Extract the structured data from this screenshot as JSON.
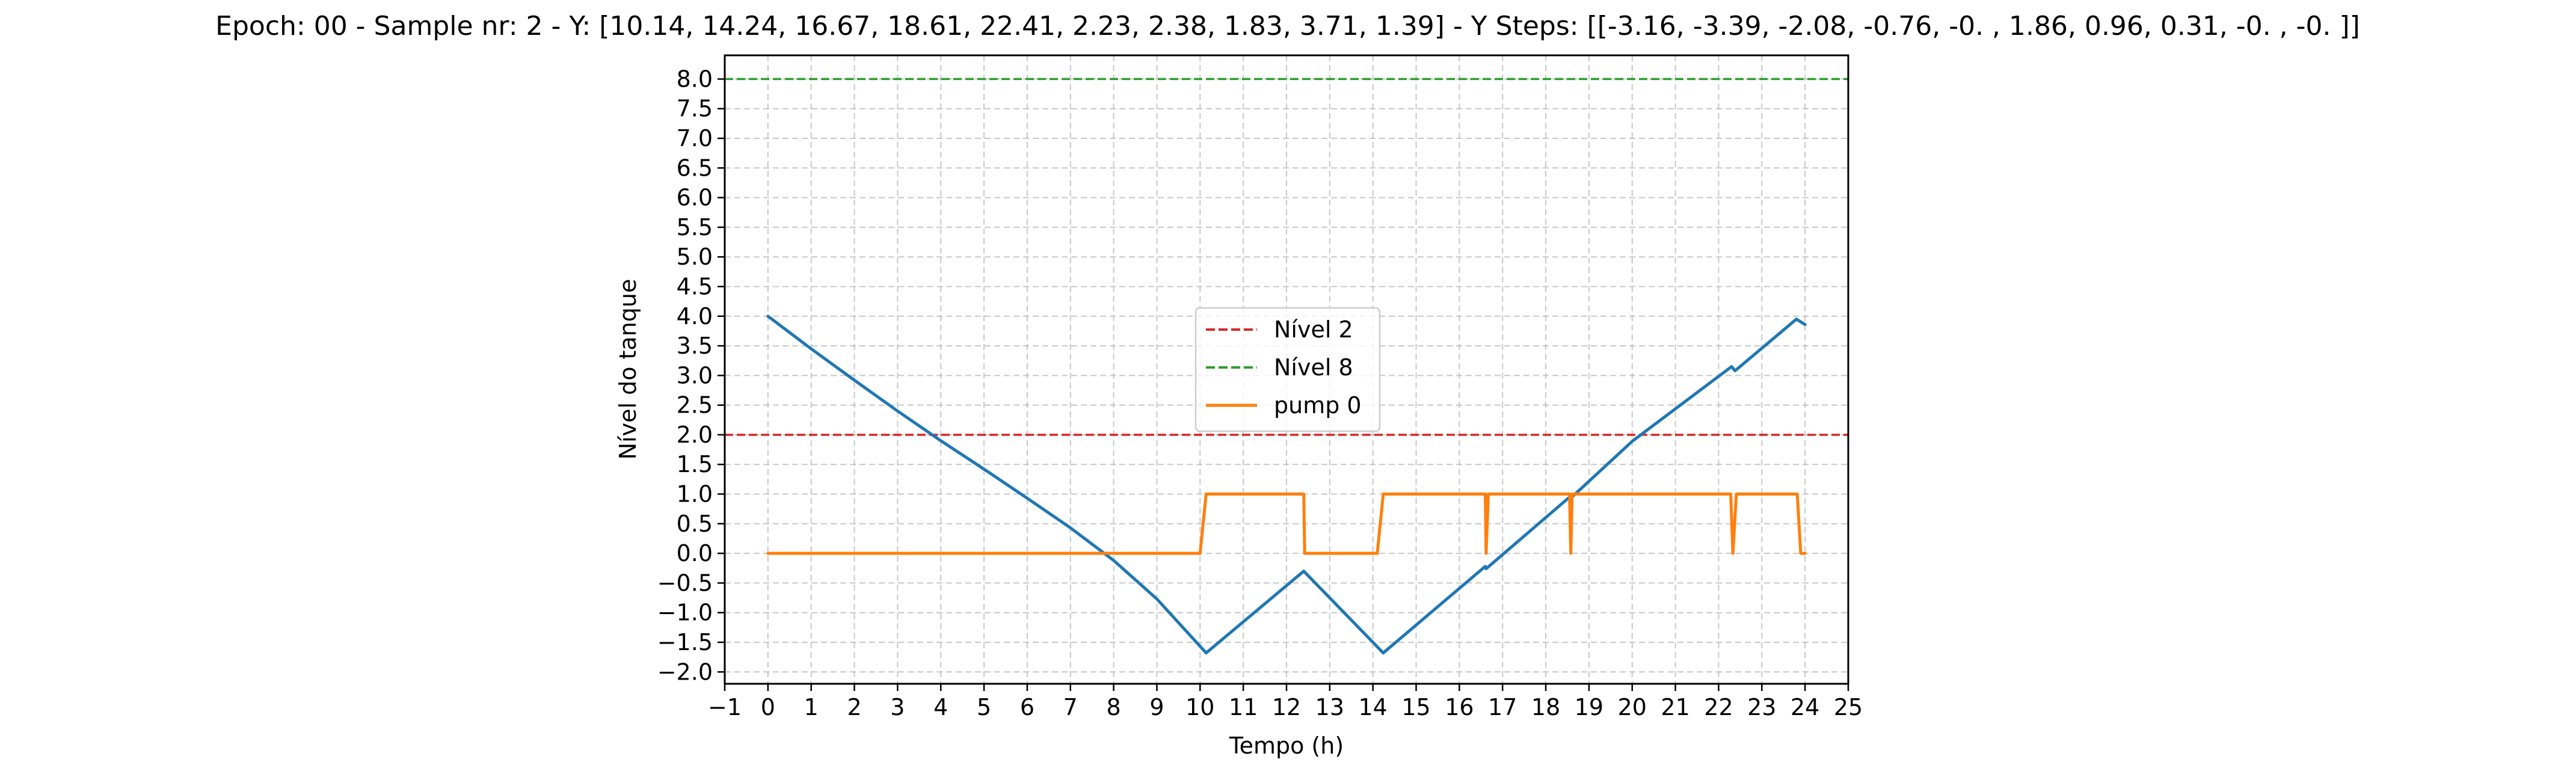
{
  "chart_data": {
    "type": "line",
    "title": "Epoch: 00 - Sample nr: 2 - Y: [10.14, 14.24, 16.67, 18.61, 22.41,  2.23,  2.38,  1.83,  3.71,  1.39] - Y Steps: [[-3.16, -3.39, -2.08, -0.76, -0.  ,  1.86,  0.96,  0.31, -0.  , -0.  ]]",
    "xlabel": "Tempo (h)",
    "ylabel": "Nível do tanque",
    "xlim": [
      -1,
      25
    ],
    "ylim": [
      -2.2,
      8.4
    ],
    "xticks": [
      -1,
      0,
      1,
      2,
      3,
      4,
      5,
      6,
      7,
      8,
      9,
      10,
      11,
      12,
      13,
      14,
      15,
      16,
      17,
      18,
      19,
      20,
      21,
      22,
      23,
      24,
      25
    ],
    "xtick_labels": [
      "−1",
      "0",
      "1",
      "2",
      "3",
      "4",
      "5",
      "6",
      "7",
      "8",
      "9",
      "10",
      "11",
      "12",
      "13",
      "14",
      "15",
      "16",
      "17",
      "18",
      "19",
      "20",
      "21",
      "22",
      "23",
      "24",
      "25"
    ],
    "yticks": [
      -2.0,
      -1.5,
      -1.0,
      -0.5,
      0.0,
      0.5,
      1.0,
      1.5,
      2.0,
      2.5,
      3.0,
      3.5,
      4.0,
      4.5,
      5.0,
      5.5,
      6.0,
      6.5,
      7.0,
      7.5,
      8.0
    ],
    "ytick_labels": [
      "−2.0",
      "−1.5",
      "−1.0",
      "−0.5",
      "0.0",
      "0.5",
      "1.0",
      "1.5",
      "2.0",
      "2.5",
      "3.0",
      "3.5",
      "4.0",
      "4.5",
      "5.0",
      "5.5",
      "6.0",
      "6.5",
      "7.0",
      "7.5",
      "8.0"
    ],
    "grid": true,
    "legend_position": "center",
    "hlines": [
      {
        "label": "Nível 2",
        "y": 2.0,
        "color": "#d62728",
        "style": "dashed"
      },
      {
        "label": "Nível 8",
        "y": 8.0,
        "color": "#2ca02c",
        "style": "dashed"
      }
    ],
    "series": [
      {
        "color": "#1f77b4",
        "points": [
          [
            0,
            4.0
          ],
          [
            1,
            3.45
          ],
          [
            2,
            2.92
          ],
          [
            3,
            2.4
          ],
          [
            4,
            1.9
          ],
          [
            5,
            1.42
          ],
          [
            6,
            0.93
          ],
          [
            7,
            0.43
          ],
          [
            8,
            -0.12
          ],
          [
            9,
            -0.77
          ],
          [
            10.14,
            -1.68
          ],
          [
            12.4,
            -0.3
          ],
          [
            14.24,
            -1.68
          ],
          [
            16.6,
            -0.22
          ],
          [
            16.62,
            -0.26
          ],
          [
            18.6,
            0.98
          ],
          [
            18.62,
            0.96
          ],
          [
            20,
            1.89
          ],
          [
            22.3,
            3.15
          ],
          [
            22.38,
            3.08
          ],
          [
            23.8,
            3.95
          ],
          [
            24,
            3.86
          ]
        ]
      },
      {
        "name": "pump 0",
        "color": "#ff7f0e",
        "points": [
          [
            0,
            0
          ],
          [
            10.0,
            0
          ],
          [
            10.14,
            1
          ],
          [
            12.4,
            1
          ],
          [
            12.42,
            0
          ],
          [
            14.1,
            0
          ],
          [
            14.24,
            1
          ],
          [
            16.6,
            1
          ],
          [
            16.62,
            0
          ],
          [
            16.67,
            1
          ],
          [
            18.55,
            1
          ],
          [
            18.58,
            0
          ],
          [
            18.61,
            1
          ],
          [
            22.28,
            1
          ],
          [
            22.33,
            0
          ],
          [
            22.41,
            1
          ],
          [
            23.82,
            1
          ],
          [
            23.9,
            0
          ],
          [
            24,
            0
          ]
        ]
      }
    ]
  }
}
